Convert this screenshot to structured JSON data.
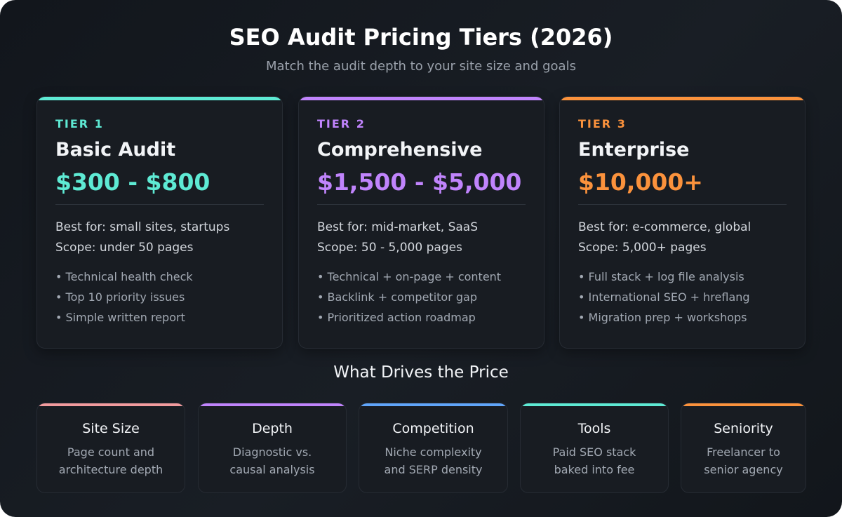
{
  "header": {
    "title": "SEO Audit Pricing Tiers (2026)",
    "subtitle": "Match the audit depth to your site size and goals"
  },
  "tiers": [
    {
      "label": "TIER 1",
      "name": "Basic Audit",
      "price": "$300 - $800",
      "best_for": "Best for: small sites, startups",
      "scope": "Scope: under 50 pages",
      "features": [
        "• Technical health check",
        "• Top 10 priority issues",
        "• Simple written report"
      ],
      "color": "#5eead4"
    },
    {
      "label": "TIER 2",
      "name": "Comprehensive",
      "price": "$1,500 - $5,000",
      "best_for": "Best for: mid-market, SaaS",
      "scope": "Scope: 50 - 5,000 pages",
      "features": [
        "• Technical + on-page + content",
        "• Backlink + competitor gap",
        "• Prioritized action roadmap"
      ],
      "color": "#c084fc"
    },
    {
      "label": "TIER 3",
      "name": "Enterprise",
      "price": "$10,000+",
      "best_for": "Best for: e-commerce, global",
      "scope": "Scope: 5,000+ pages",
      "features": [
        "• Full stack + log file analysis",
        "• International SEO + hreflang",
        "• Migration prep + workshops"
      ],
      "color": "#fb923c"
    }
  ],
  "drivers_title": "What Drives the Price",
  "drivers": [
    {
      "title": "Site Size",
      "line1": "Page count and",
      "line2": "architecture depth",
      "color": "#f29b9e"
    },
    {
      "title": "Depth",
      "line1": "Diagnostic vs.",
      "line2": "causal analysis",
      "color": "#c084fc"
    },
    {
      "title": "Competition",
      "line1": "Niche complexity",
      "line2": "and SERP density",
      "color": "#60a5fa"
    },
    {
      "title": "Tools",
      "line1": "Paid SEO stack",
      "line2": "baked into fee",
      "color": "#5eead4"
    },
    {
      "title": "Seniority",
      "line1": "Freelancer to",
      "line2": "senior agency",
      "color": "#fb923c"
    }
  ]
}
